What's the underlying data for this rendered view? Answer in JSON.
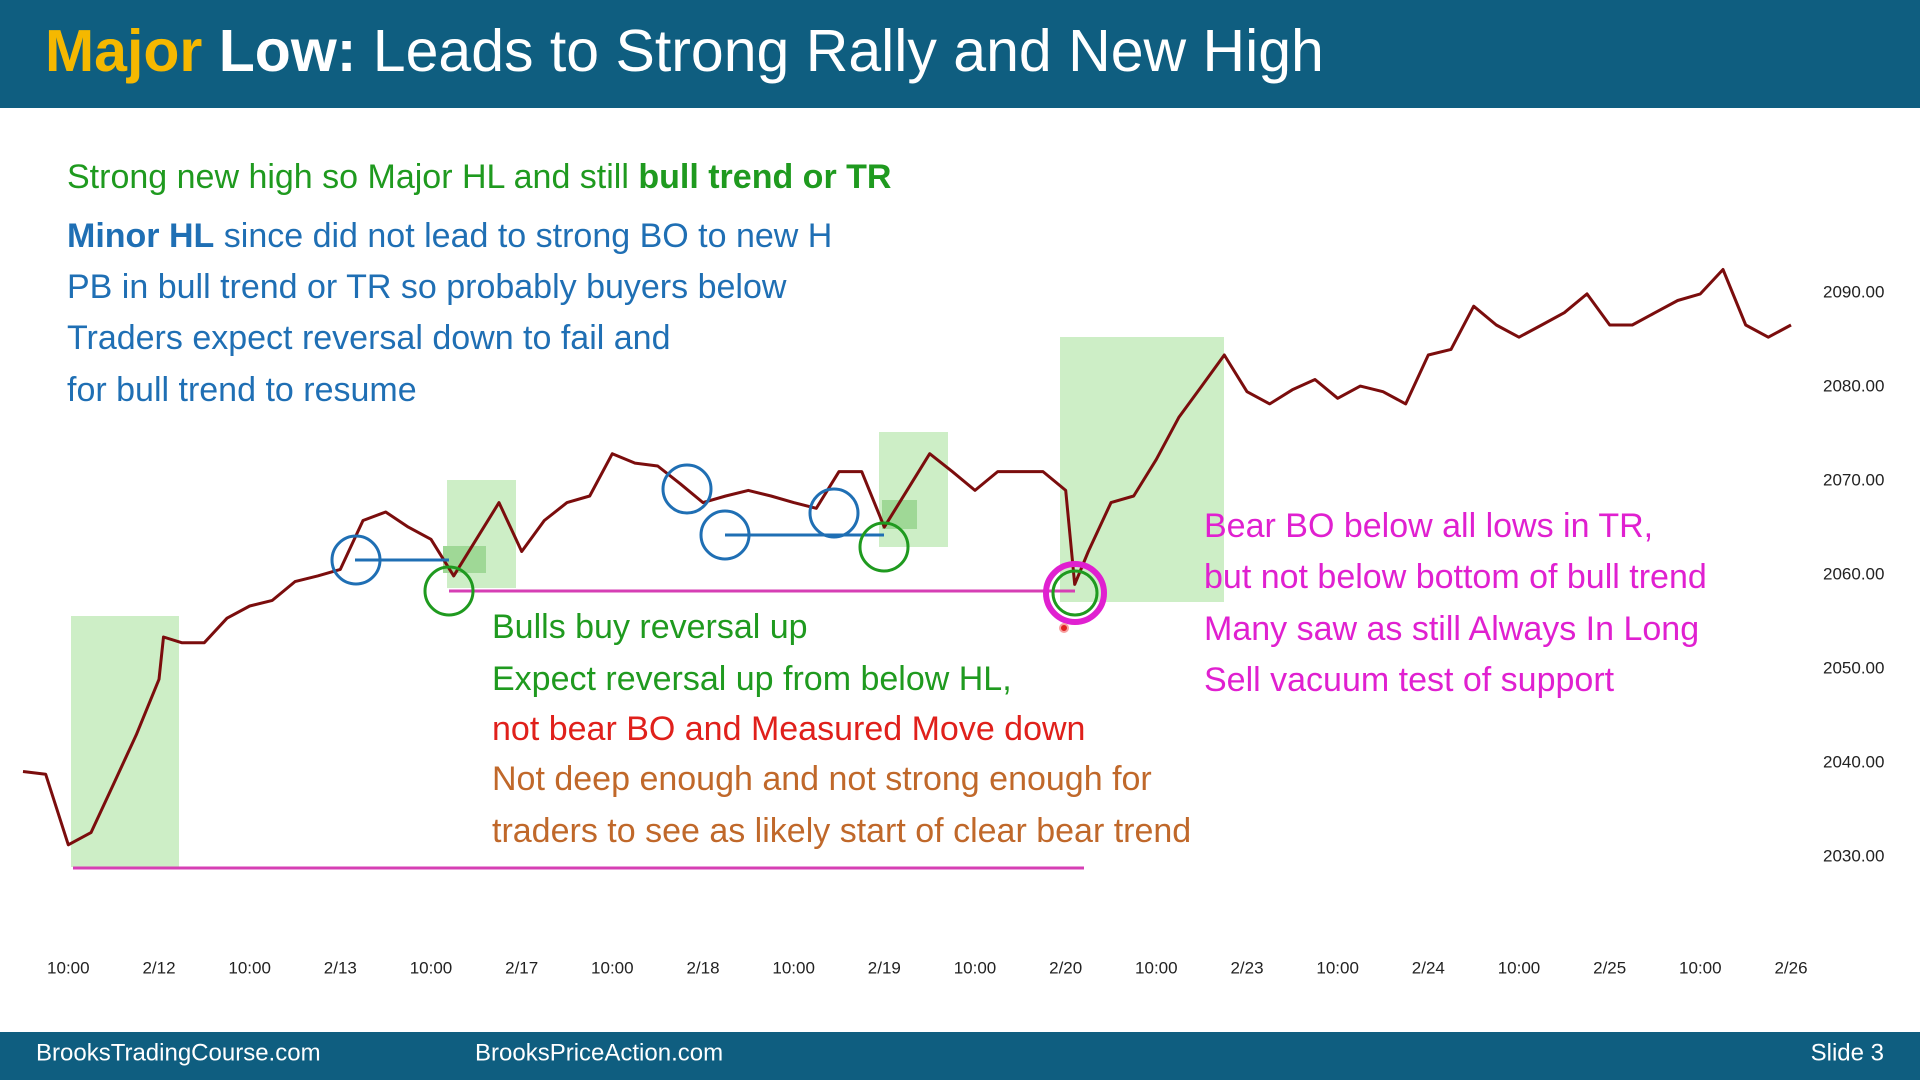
{
  "header": {
    "title": [
      {
        "text": "Major",
        "color": "#f5b800",
        "bold": true
      },
      {
        "text": " Low:",
        "color": "#ffffff",
        "bold": true
      },
      {
        "text": " Leads to Strong Rally and New High",
        "color": "#ffffff",
        "bold": false
      }
    ]
  },
  "annotations": [
    {
      "color": "#1f9a1f",
      "parts": [
        {
          "text": "Strong new high so Major HL and still ",
          "bold": false
        },
        {
          "text": "bull trend or TR",
          "bold": true
        }
      ]
    },
    {
      "color": "#1f6fb4",
      "parts": [
        {
          "text": "Minor HL",
          "bold": true
        },
        {
          "text": " since did not lead to strong BO to new H",
          "bold": false
        }
      ]
    },
    {
      "color": "#1f6fb4",
      "parts": [
        {
          "text": "PB in bull trend or TR so probably buyers below",
          "bold": false
        }
      ]
    },
    {
      "color": "#1f6fb4",
      "parts": [
        {
          "text": "Traders expect reversal down to fail and",
          "bold": false
        }
      ]
    },
    {
      "color": "#1f6fb4",
      "parts": [
        {
          "text": "for bull trend to resume",
          "bold": false
        }
      ]
    },
    {
      "color": "#1f9a1f",
      "parts": [
        {
          "text": "Bulls buy reversal up",
          "bold": false
        }
      ]
    },
    {
      "color": "#1f9a1f",
      "parts": [
        {
          "text": "Expect reversal up from below HL,",
          "bold": false
        }
      ]
    },
    {
      "color": "#e0201b",
      "parts": [
        {
          "text": "not bear BO and Measured Move down",
          "bold": false
        }
      ]
    },
    {
      "color": "#c0682a",
      "parts": [
        {
          "text": "Not deep enough and not strong enough for",
          "bold": false
        }
      ]
    },
    {
      "color": "#c0682a",
      "parts": [
        {
          "text": "traders to see as likely start of clear bear trend",
          "bold": false
        }
      ]
    },
    {
      "color": "#e020d0",
      "parts": [
        {
          "text": "Bear BO below all lows in TR,",
          "bold": false
        }
      ]
    },
    {
      "color": "#e020d0",
      "parts": [
        {
          "text": "but not below bottom of bull trend",
          "bold": false
        }
      ]
    },
    {
      "color": "#e020d0",
      "parts": [
        {
          "text": "Many saw as still Always In Long",
          "bold": false
        }
      ]
    },
    {
      "color": "#e020d0",
      "parts": [
        {
          "text": "Sell vacuum test of support",
          "bold": false
        }
      ]
    }
  ],
  "footer": {
    "left": "BrooksTradingCourse.com",
    "center": "BrooksPriceAction.com",
    "right": "Slide  3"
  },
  "chart_data": {
    "type": "line",
    "x": [
      -0.5,
      -0.25,
      0,
      0.25,
      0.5,
      0.75,
      1,
      1.05,
      1.25,
      1.5,
      1.75,
      2,
      2.25,
      2.5,
      2.75,
      3,
      3.25,
      3.5,
      3.75,
      4,
      4.25,
      4.5,
      4.75,
      5,
      5.25,
      5.5,
      5.75,
      6,
      6.25,
      6.5,
      6.75,
      7,
      7.25,
      7.5,
      7.75,
      8,
      8.25,
      8.5,
      8.75,
      9,
      9.25,
      9.5,
      9.75,
      10,
      10.25,
      10.5,
      10.75,
      11,
      11.1,
      11.25,
      11.5,
      11.75,
      12,
      12.25,
      12.5,
      12.75,
      13,
      13.25,
      13.5,
      13.75,
      14,
      14.25,
      14.5,
      14.75,
      15,
      15.25,
      15.5,
      15.75,
      16,
      16.25,
      16.5,
      16.75,
      17,
      17.25,
      17.5,
      17.75,
      18,
      18.25,
      18.5,
      18.75,
      19
    ],
    "series": [
      {
        "color": "#7b0d0d",
        "values": [
          2039.1,
          2038.8,
          2031.3,
          2032.6,
          2037.8,
          2043,
          2048.9,
          2053.4,
          2052.8,
          2052.8,
          2055.4,
          2056.7,
          2057.3,
          2059.3,
          2059.9,
          2060.6,
          2065.8,
          2066.7,
          2065.1,
          2063.8,
          2059.9,
          2063.8,
          2067.7,
          2062.5,
          2065.8,
          2067.7,
          2068.4,
          2072.9,
          2071.9,
          2071.6,
          2069.7,
          2067.7,
          2068.4,
          2069,
          2068.4,
          2067.7,
          2067.1,
          2071,
          2071,
          2065.1,
          2069,
          2072.9,
          2071,
          2069,
          2071,
          2071,
          2071,
          2069,
          2059,
          2062.5,
          2067.7,
          2068.4,
          2072.3,
          2076.8,
          2080.1,
          2083.4,
          2079.5,
          2078.2,
          2079.7,
          2080.8,
          2078.8,
          2080.1,
          2079.5,
          2078.2,
          2083.4,
          2084,
          2088.6,
          2086.6,
          2085.3,
          2086.6,
          2087.9,
          2089.9,
          2086.6,
          2086.6,
          2087.9,
          2089.2,
          2089.9,
          2092.5,
          2086.6,
          2085.3,
          2086.6
        ]
      }
    ],
    "xlim": [
      -0.5,
      19
    ],
    "ylim": [
      2025,
      2095
    ],
    "xticks": [
      {
        "value": 0,
        "label": "10:00"
      },
      {
        "value": 1,
        "label": "2/12"
      },
      {
        "value": 2,
        "label": "10:00"
      },
      {
        "value": 3,
        "label": "2/13"
      },
      {
        "value": 4,
        "label": "10:00"
      },
      {
        "value": 5,
        "label": "2/17"
      },
      {
        "value": 6,
        "label": "10:00"
      },
      {
        "value": 7,
        "label": "2/18"
      },
      {
        "value": 8,
        "label": "10:00"
      },
      {
        "value": 9,
        "label": "2/19"
      },
      {
        "value": 10,
        "label": "10:00"
      },
      {
        "value": 11,
        "label": "2/20"
      },
      {
        "value": 12,
        "label": "10:00"
      },
      {
        "value": 13,
        "label": "2/23"
      },
      {
        "value": 14,
        "label": "10:00"
      },
      {
        "value": 15,
        "label": "2/24"
      },
      {
        "value": 16,
        "label": "10:00"
      },
      {
        "value": 17,
        "label": "2/25"
      },
      {
        "value": 18,
        "label": "10:00"
      },
      {
        "value": 19,
        "label": "2/26"
      }
    ],
    "yticks": [
      {
        "value": 2030,
        "label": "2030.00"
      },
      {
        "value": 2040,
        "label": "2040.00"
      },
      {
        "value": 2050,
        "label": "2050.00"
      },
      {
        "value": 2060,
        "label": "2060.00"
      },
      {
        "value": 2070,
        "label": "2070.00"
      },
      {
        "value": 2080,
        "label": "2080.00"
      },
      {
        "value": 2090,
        "label": "2090.00"
      }
    ],
    "grid": false
  }
}
